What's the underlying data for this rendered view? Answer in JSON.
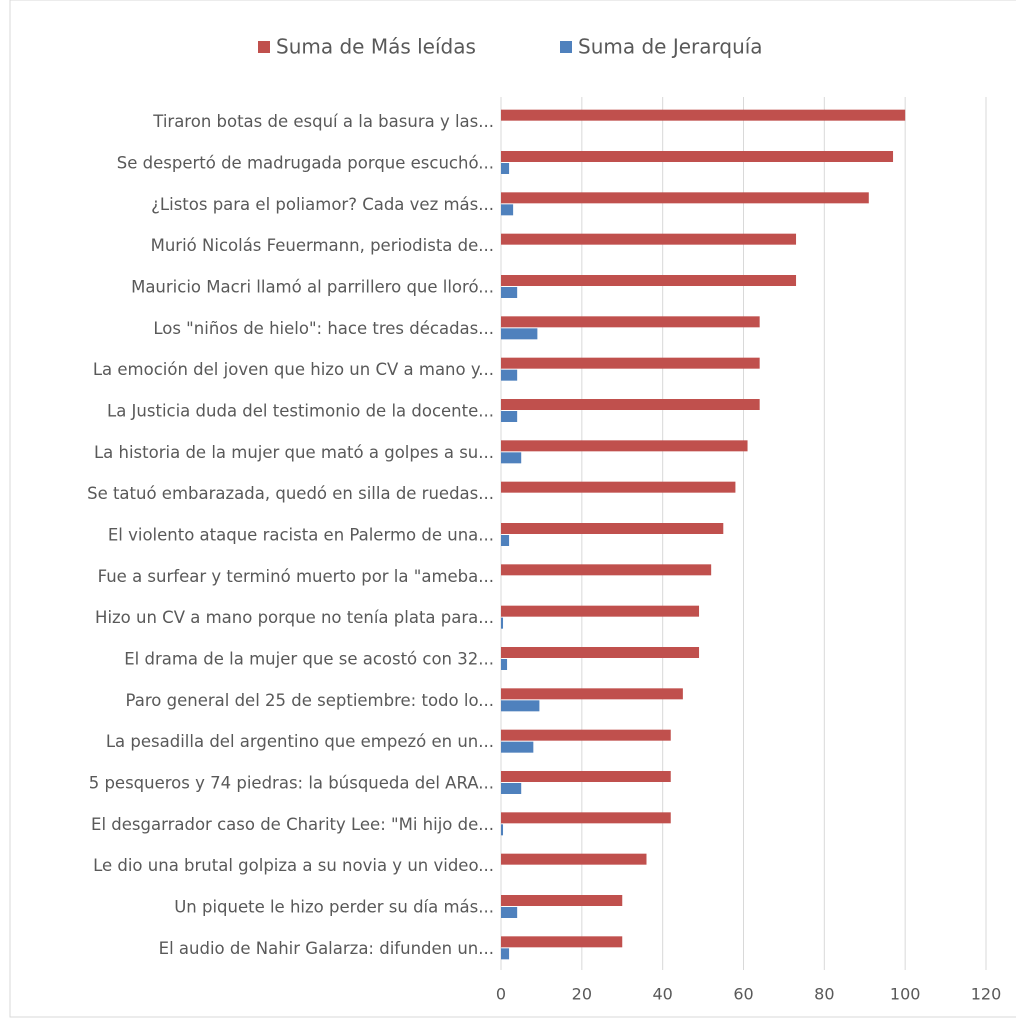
{
  "chart_data": {
    "type": "barh",
    "categories": [
      "Tiraron botas de esquí a la basura y las...",
      "Se despertó de madrugada porque escuchó...",
      "¿Listos para el poliamor? Cada vez más...",
      "Murió Nicolás Feuermann, periodista de...",
      "Mauricio Macri llamó al parrillero que lloró...",
      "Los \"niños de hielo\": hace tres décadas...",
      "La emoción del joven que hizo un CV a mano y...",
      "La Justicia duda del testimonio de la docente...",
      "La historia de la mujer que mató a golpes a su...",
      "Se tatuó embarazada, quedó en silla de ruedas...",
      "El violento ataque racista en Palermo de una...",
      "Fue a surfear y terminó muerto por la \"ameba...",
      "Hizo un CV a mano porque no tenía plata para...",
      "El drama de la mujer que se acostó con 32...",
      "Paro general del 25 de septiembre: todo lo...",
      "La pesadilla del argentino que empezó en un...",
      "5 pesqueros y 74 piedras: la búsqueda del ARA...",
      "El desgarrador caso de Charity Lee: \"Mi hijo de...",
      "Le dio una brutal golpiza a su novia y un video...",
      "Un piquete le hizo perder su día más...",
      "El audio de Nahir Galarza: difunden un..."
    ],
    "series": [
      {
        "name": "Suma de Más leídas",
        "color": "#c0504d",
        "values": [
          100,
          97,
          91,
          73,
          73,
          64,
          64,
          64,
          61,
          58,
          55,
          52,
          49,
          49,
          45,
          42,
          42,
          42,
          36,
          30,
          30
        ]
      },
      {
        "name": "Suma de Jerarquía",
        "color": "#4f81bd",
        "values": [
          0,
          2,
          3,
          0,
          4,
          9,
          4,
          4,
          5,
          0,
          2,
          0,
          0.5,
          1.5,
          9.5,
          8,
          5,
          0.5,
          0,
          4,
          2
        ]
      }
    ],
    "xlim": [
      0,
      120
    ],
    "xticks": [
      0,
      20,
      40,
      60,
      80,
      100,
      120
    ],
    "grid": true,
    "legend": "top"
  }
}
